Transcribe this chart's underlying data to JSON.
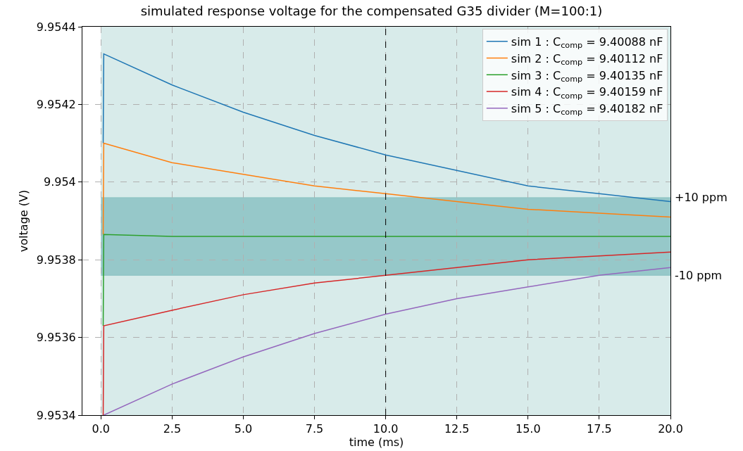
{
  "chart_data": {
    "type": "line",
    "title": "simulated response voltage for the compensated G35 divider (M=100:1)",
    "xlabel": "time (ms)",
    "ylabel": "voltage (V)",
    "xlim": [
      -0.65,
      20
    ],
    "xticks": [
      {
        "value": 0,
        "label": "0.0"
      },
      {
        "value": 2.5,
        "label": "2.5"
      },
      {
        "value": 5,
        "label": "5.0"
      },
      {
        "value": 7.5,
        "label": "7.5"
      },
      {
        "value": 10,
        "label": "10.0"
      },
      {
        "value": 12.5,
        "label": "12.5"
      },
      {
        "value": 15,
        "label": "15.0"
      },
      {
        "value": 17.5,
        "label": "17.5"
      },
      {
        "value": 20,
        "label": "20.0"
      }
    ],
    "ylim": [
      9.9534,
      9.9544
    ],
    "yticks": [
      9.9534,
      9.9536,
      9.9538,
      9.954,
      9.9542,
      9.9544
    ],
    "x": [
      0.08,
      0.1,
      2.5,
      5,
      7.5,
      10,
      12.5,
      15,
      17.5,
      20
    ],
    "series": [
      {
        "name": "sim 1 : C$_{comp}$ = 9.40088 nF",
        "color": "#1f77b4",
        "values": [
          9.9541,
          9.95433,
          9.95425,
          9.95418,
          9.95412,
          9.95407,
          9.95403,
          9.95399,
          9.95397,
          9.95395
        ]
      },
      {
        "name": "sim 2 : C$_{comp}$ = 9.40112 nF",
        "color": "#ff7f0e",
        "values": [
          9.953865,
          9.9541,
          9.95405,
          9.95402,
          9.95399,
          9.95397,
          9.95395,
          9.95393,
          9.95392,
          9.95391
        ]
      },
      {
        "name": "sim 3 : C$_{comp}$ = 9.40135 nF",
        "color": "#2ca02c",
        "values": [
          9.95363,
          9.953865,
          9.95386,
          9.95386,
          9.95386,
          9.95386,
          9.95386,
          9.95386,
          9.95386,
          9.95386
        ]
      },
      {
        "name": "sim 4 : C$_{comp}$ = 9.40159 nF",
        "color": "#d62728",
        "values": [
          9.9534,
          9.95363,
          9.95367,
          9.95371,
          9.95374,
          9.95376,
          9.95378,
          9.9538,
          9.95381,
          9.95382
        ]
      },
      {
        "name": "sim 5 : C$_{comp}$ = 9.40182 nF",
        "color": "#9467bd",
        "values": [
          null,
          9.9534,
          9.95348,
          9.95355,
          9.95361,
          9.95366,
          9.9537,
          9.95373,
          9.95376,
          9.95378
        ]
      }
    ],
    "bands": [
      {
        "axis": "x",
        "from": 0,
        "to": 20,
        "color": "#d8ebea"
      },
      {
        "axis": "y",
        "from": 9.95376,
        "to": 9.95396,
        "color": "#96c8c9"
      }
    ],
    "ref_lines": [
      {
        "axis": "x",
        "value": 10,
        "color": "#000000",
        "line_style": "dashed"
      },
      {
        "axis": "y",
        "value": 9.95396,
        "label": "+10 ppm",
        "color": "#8cc2c2",
        "line_style": "solid"
      },
      {
        "axis": "y",
        "value": 9.95376,
        "label": "-10 ppm",
        "color": "#8cc2c2",
        "line_style": "solid"
      }
    ],
    "grid": true,
    "legend": "top right",
    "line_style": "solid",
    "marker": "none"
  }
}
